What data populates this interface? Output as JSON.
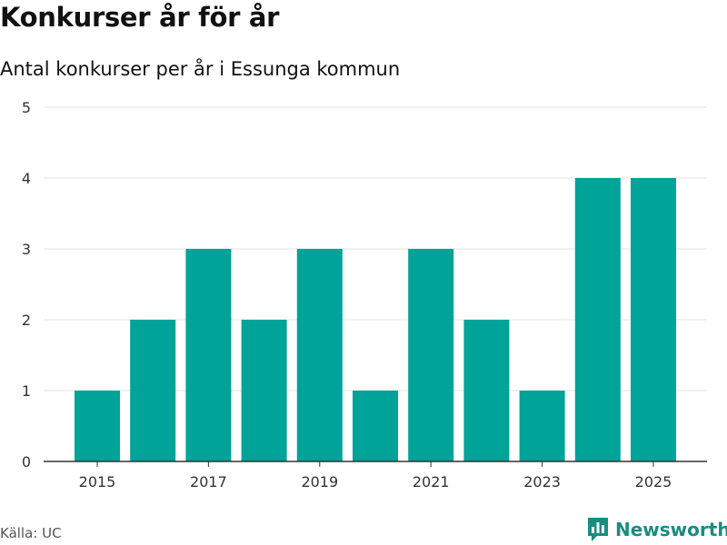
{
  "title": "Konkurser år för år",
  "subtitle": "Antal konkurser per år i Essunga kommun",
  "source": "Källa: UC",
  "brand": "Newsworthy",
  "colors": {
    "bar": "#00a397",
    "grid": "#e3e3e3",
    "axis": "#333333",
    "brand": "#1a8c80"
  },
  "chart_data": {
    "type": "bar",
    "categories": [
      "2015",
      "2016",
      "2017",
      "2018",
      "2019",
      "2020",
      "2021",
      "2022",
      "2023",
      "2024",
      "2025"
    ],
    "values": [
      1,
      2,
      3,
      2,
      3,
      1,
      3,
      2,
      1,
      4,
      4
    ],
    "x_tick_labels": [
      "2015",
      "2017",
      "2019",
      "2021",
      "2023",
      "2025"
    ],
    "y_ticks": [
      0,
      1,
      2,
      3,
      4,
      5
    ],
    "ylim": [
      0,
      5
    ],
    "grid": true
  }
}
